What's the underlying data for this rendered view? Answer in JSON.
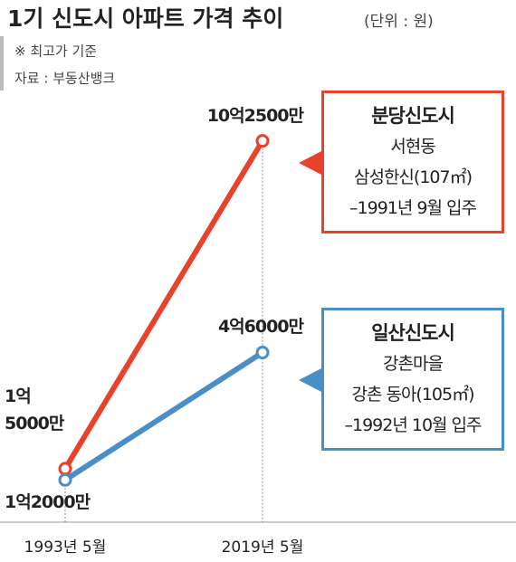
{
  "chart_data": {
    "type": "line",
    "title": "1기 신도시 아파트 가격 추이",
    "subtitle": "(단위 : 원)",
    "notes": [
      "※ 최고가 기준",
      "자료 : 부동산뱅크"
    ],
    "categories": [
      "1993년 5월",
      "2019년 5월"
    ],
    "series": [
      {
        "name": "분당신도시",
        "color": "#e8412c",
        "values": [
          150000000,
          1025000000
        ],
        "value_labels": [
          "1억\n5000만",
          "10억2500만"
        ],
        "annotation": [
          "분당신도시",
          "서현동",
          "삼성한신(107㎡)",
          "–1991년 9월 입주"
        ]
      },
      {
        "name": "일산신도시",
        "color": "#4a8ec6",
        "values": [
          120000000,
          460000000
        ],
        "value_labels": [
          "1억2000만",
          "4억6000만"
        ],
        "annotation": [
          "일산신도시",
          "강촌마을",
          "강촌 동아(105㎡)",
          "–1992년 10월 입주"
        ]
      }
    ]
  }
}
